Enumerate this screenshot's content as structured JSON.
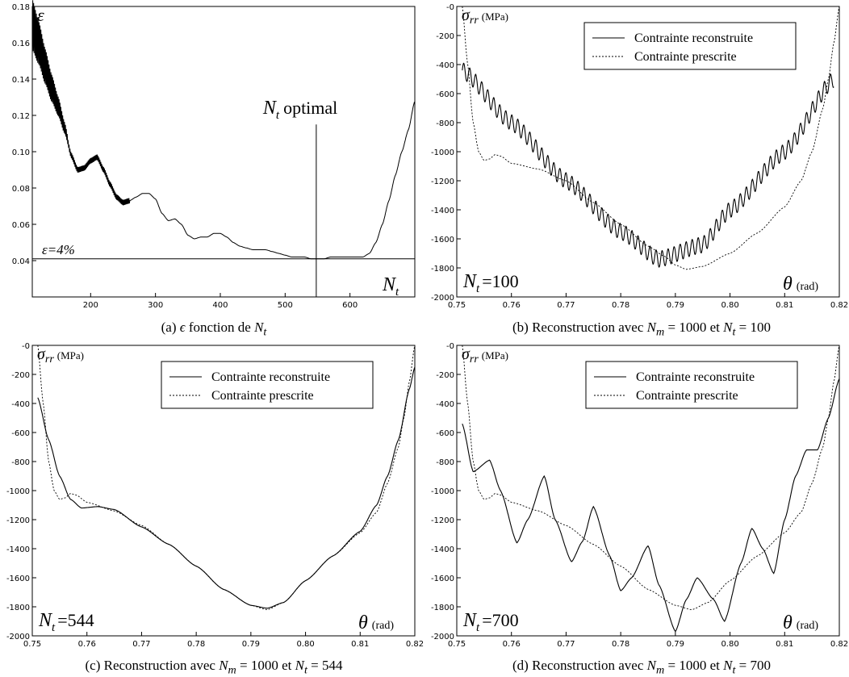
{
  "captions": {
    "a": {
      "prefix": "(a)",
      "eps": "ϵ",
      "mid": "fonction de",
      "var": "N",
      "sub": "t"
    },
    "b": {
      "prefix": "(b) Reconstruction avec",
      "nm": "N",
      "nmsub": "m",
      "eq1": "= 1000 et",
      "nt": "N",
      "ntsub": "t",
      "eq2": "= 100"
    },
    "c": {
      "prefix": "(c) Reconstruction avec",
      "nm": "N",
      "nmsub": "m",
      "eq1": "= 1000 et",
      "nt": "N",
      "ntsub": "t",
      "eq2": "= 544"
    },
    "d": {
      "prefix": "(d) Reconstruction avec",
      "nm": "N",
      "nmsub": "m",
      "eq1": "= 1000 et",
      "nt": "N",
      "ntsub": "t",
      "eq2": "= 700"
    }
  },
  "chart_data": [
    {
      "id": "a",
      "type": "line",
      "ylabel": "ε",
      "xlabel_main": "N",
      "xlabel_sub": "t",
      "annotation_optimal_main": "N",
      "annotation_optimal_sub": "t",
      "annotation_optimal_text": "optimal",
      "annotation_threshold": "ε=4%",
      "xlim": [
        110,
        700
      ],
      "ylim": [
        0.02,
        0.18
      ],
      "xticks": [
        200,
        300,
        400,
        500,
        600
      ],
      "yticks": [
        0.04,
        0.06,
        0.08,
        0.1,
        0.12,
        0.14,
        0.16,
        0.18
      ],
      "ytick_labels": [
        "0.04",
        "0.06",
        "0.08",
        "0.10",
        "0.12",
        "0.14",
        "0.16",
        "0.18"
      ],
      "threshold_y": 0.041,
      "optimal_x": 548,
      "series": [
        {
          "x": [
            110,
            120,
            130,
            140,
            150,
            160,
            170,
            180,
            190,
            200,
            210,
            220,
            230,
            240,
            250,
            260,
            270,
            280,
            290,
            300,
            310,
            320,
            330,
            340,
            350,
            360,
            370,
            380,
            390,
            400,
            410,
            420,
            430,
            440,
            450,
            460,
            470,
            480,
            490,
            500,
            510,
            520,
            530,
            540,
            550,
            560,
            570,
            580,
            590,
            600,
            610,
            620,
            630,
            640,
            650,
            660,
            670,
            680,
            690,
            700
          ],
          "y": [
            0.17,
            0.16,
            0.147,
            0.135,
            0.125,
            0.113,
            0.098,
            0.09,
            0.091,
            0.095,
            0.097,
            0.09,
            0.082,
            0.075,
            0.072,
            0.073,
            0.075,
            0.077,
            0.077,
            0.074,
            0.066,
            0.062,
            0.063,
            0.06,
            0.054,
            0.052,
            0.053,
            0.053,
            0.055,
            0.055,
            0.053,
            0.05,
            0.048,
            0.047,
            0.046,
            0.046,
            0.046,
            0.045,
            0.044,
            0.043,
            0.042,
            0.042,
            0.042,
            0.041,
            0.041,
            0.041,
            0.042,
            0.042,
            0.042,
            0.042,
            0.042,
            0.042,
            0.044,
            0.05,
            0.06,
            0.073,
            0.087,
            0.1,
            0.112,
            0.128
          ],
          "noise_until": 165
        }
      ]
    },
    {
      "id": "b",
      "type": "line",
      "ylabel_main": "σ",
      "ylabel_sub": "rr",
      "ylabel_unit": "(MPa)",
      "xlabel_main": "θ",
      "xlabel_unit": "(rad)",
      "nt_label_main": "N",
      "nt_label_sub": "t",
      "nt_label_value": "=100",
      "xlim": [
        0.75,
        0.82
      ],
      "ylim": [
        -2000,
        0
      ],
      "xticks": [
        0.75,
        0.76,
        0.77,
        0.78,
        0.79,
        0.8,
        0.81,
        0.82
      ],
      "xtick_labels": [
        "0.75",
        "0.76",
        "0.77",
        "0.78",
        "0.79",
        "0.80",
        "0.81",
        "0.82"
      ],
      "yticks": [
        0,
        -200,
        -400,
        -600,
        -800,
        -1000,
        -1200,
        -1400,
        -1600,
        -1800,
        -2000
      ],
      "ytick_labels": [
        "-0",
        "-200",
        "-400",
        "-600",
        "-800",
        "-1000",
        "-1200",
        "-1400",
        "-1600",
        "-1800",
        "-2000"
      ],
      "legend": [
        "Contrainte reconstruite",
        "Contrainte prescrite"
      ],
      "series": [
        {
          "name": "Contrainte reconstruite",
          "style": "solid",
          "x": [
            0.751,
            0.76,
            0.77,
            0.78,
            0.787,
            0.795,
            0.8,
            0.81,
            0.819
          ],
          "y": [
            -440,
            -800,
            -1200,
            -1550,
            -1740,
            -1640,
            -1400,
            -1000,
            -500
          ],
          "oscillation": {
            "amplitude": 55,
            "period": 0.0011
          }
        },
        {
          "name": "Contrainte prescrite",
          "style": "dashed",
          "x": [
            0.751,
            0.752,
            0.753,
            0.754,
            0.755,
            0.756,
            0.757,
            0.758,
            0.76,
            0.765,
            0.77,
            0.775,
            0.78,
            0.785,
            0.788,
            0.79,
            0.792,
            0.795,
            0.8,
            0.805,
            0.81,
            0.813,
            0.815,
            0.817,
            0.818,
            0.819,
            0.82
          ],
          "y": [
            0,
            -400,
            -800,
            -1000,
            -1060,
            -1050,
            -1020,
            -1030,
            -1080,
            -1120,
            -1200,
            -1350,
            -1500,
            -1650,
            -1720,
            -1780,
            -1810,
            -1790,
            -1700,
            -1560,
            -1380,
            -1200,
            -1000,
            -700,
            -500,
            -250,
            0
          ]
        }
      ]
    },
    {
      "id": "c",
      "type": "line",
      "ylabel_main": "σ",
      "ylabel_sub": "rr",
      "ylabel_unit": "(MPa)",
      "xlabel_main": "θ",
      "xlabel_unit": "(rad)",
      "nt_label_main": "N",
      "nt_label_sub": "t",
      "nt_label_value": "=544",
      "xlim": [
        0.75,
        0.82
      ],
      "ylim": [
        -2000,
        0
      ],
      "xticks": [
        0.75,
        0.76,
        0.77,
        0.78,
        0.79,
        0.8,
        0.81,
        0.82
      ],
      "xtick_labels": [
        "0.75",
        "0.76",
        "0.77",
        "0.78",
        "0.79",
        "0.80",
        "0.81",
        "0.82"
      ],
      "yticks": [
        0,
        -200,
        -400,
        -600,
        -800,
        -1000,
        -1200,
        -1400,
        -1600,
        -1800,
        -2000
      ],
      "ytick_labels": [
        "-0",
        "-200",
        "-400",
        "-600",
        "-800",
        "-1000",
        "-1200",
        "-1400",
        "-1600",
        "-1800",
        "-2000"
      ],
      "legend": [
        "Contrainte reconstruite",
        "Contrainte prescrite"
      ],
      "series": [
        {
          "name": "Contrainte reconstruite",
          "style": "solid",
          "x": [
            0.751,
            0.753,
            0.755,
            0.757,
            0.759,
            0.762,
            0.765,
            0.77,
            0.775,
            0.78,
            0.785,
            0.79,
            0.793,
            0.796,
            0.8,
            0.805,
            0.81,
            0.813,
            0.815,
            0.817,
            0.819,
            0.82
          ],
          "y": [
            -360,
            -650,
            -900,
            -1060,
            -1120,
            -1110,
            -1130,
            -1250,
            -1370,
            -1520,
            -1680,
            -1790,
            -1810,
            -1770,
            -1620,
            -1450,
            -1280,
            -1100,
            -900,
            -650,
            -300,
            -150
          ]
        },
        {
          "name": "Contrainte prescrite",
          "style": "dashed",
          "x": [
            0.751,
            0.752,
            0.753,
            0.754,
            0.755,
            0.756,
            0.757,
            0.758,
            0.76,
            0.765,
            0.77,
            0.775,
            0.78,
            0.785,
            0.79,
            0.793,
            0.796,
            0.8,
            0.805,
            0.81,
            0.813,
            0.815,
            0.817,
            0.818,
            0.819,
            0.82
          ],
          "y": [
            0,
            -400,
            -800,
            -1000,
            -1060,
            -1050,
            -1020,
            -1030,
            -1080,
            -1140,
            -1240,
            -1370,
            -1520,
            -1680,
            -1790,
            -1820,
            -1770,
            -1620,
            -1450,
            -1290,
            -1150,
            -950,
            -700,
            -500,
            -250,
            0
          ]
        }
      ]
    },
    {
      "id": "d",
      "type": "line",
      "ylabel_main": "σ",
      "ylabel_sub": "rr",
      "ylabel_unit": "(MPa)",
      "xlabel_main": "θ",
      "xlabel_unit": "(rad)",
      "nt_label_main": "N",
      "nt_label_sub": "t",
      "nt_label_value": "=700",
      "xlim": [
        0.75,
        0.82
      ],
      "ylim": [
        -2000,
        0
      ],
      "xticks": [
        0.75,
        0.76,
        0.77,
        0.78,
        0.79,
        0.8,
        0.81,
        0.82
      ],
      "xtick_labels": [
        "0.75",
        "0.76",
        "0.77",
        "0.78",
        "0.79",
        "0.80",
        "0.81",
        "0.82"
      ],
      "yticks": [
        0,
        -200,
        -400,
        -600,
        -800,
        -1000,
        -1200,
        -1400,
        -1600,
        -1800,
        -2000
      ],
      "ytick_labels": [
        "-0",
        "-200",
        "-400",
        "-600",
        "-800",
        "-1000",
        "-1200",
        "-1400",
        "-1600",
        "-1800",
        "-2000"
      ],
      "legend": [
        "Contrainte reconstruite",
        "Contrainte prescrite"
      ],
      "series": [
        {
          "name": "Contrainte reconstruite",
          "style": "solid",
          "x": [
            0.751,
            0.753,
            0.756,
            0.758,
            0.761,
            0.763,
            0.766,
            0.768,
            0.771,
            0.773,
            0.775,
            0.778,
            0.78,
            0.782,
            0.785,
            0.787,
            0.79,
            0.792,
            0.794,
            0.797,
            0.799,
            0.802,
            0.804,
            0.806,
            0.808,
            0.81,
            0.812,
            0.814,
            0.816,
            0.818,
            0.82
          ],
          "y": [
            -540,
            -870,
            -790,
            -1000,
            -1360,
            -1200,
            -900,
            -1200,
            -1490,
            -1350,
            -1110,
            -1450,
            -1690,
            -1600,
            -1380,
            -1650,
            -1970,
            -1750,
            -1600,
            -1750,
            -1900,
            -1500,
            -1260,
            -1400,
            -1570,
            -1200,
            -900,
            -720,
            -720,
            -500,
            -230
          ]
        },
        {
          "name": "Contrainte prescrite",
          "style": "dashed",
          "x": [
            0.751,
            0.752,
            0.753,
            0.754,
            0.755,
            0.756,
            0.757,
            0.758,
            0.76,
            0.765,
            0.77,
            0.775,
            0.78,
            0.785,
            0.79,
            0.793,
            0.796,
            0.8,
            0.805,
            0.81,
            0.813,
            0.815,
            0.817,
            0.818,
            0.819,
            0.82
          ],
          "y": [
            0,
            -400,
            -800,
            -1000,
            -1060,
            -1050,
            -1020,
            -1030,
            -1080,
            -1140,
            -1240,
            -1370,
            -1520,
            -1680,
            -1790,
            -1820,
            -1770,
            -1620,
            -1450,
            -1290,
            -1150,
            -950,
            -700,
            -500,
            -250,
            0
          ]
        }
      ]
    }
  ]
}
